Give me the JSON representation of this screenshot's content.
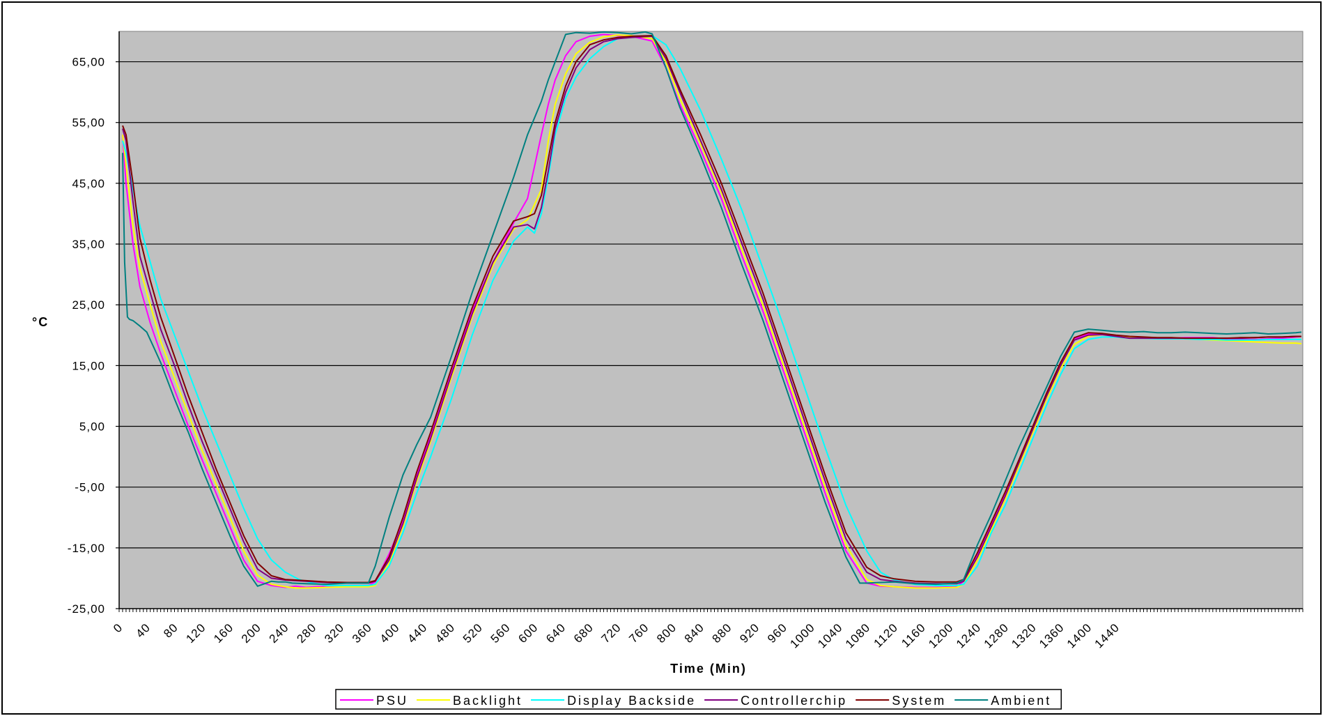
{
  "chart_data": {
    "type": "line",
    "title": "",
    "xlabel": "Time (Min)",
    "ylabel": "°C",
    "xlim": [
      0,
      1710
    ],
    "ylim": [
      -25,
      70
    ],
    "grid": true,
    "plot_background": "#c0c0c0",
    "legend_position": "bottom",
    "y_ticks": [
      -25,
      -15,
      -5,
      5,
      15,
      25,
      35,
      45,
      55,
      65
    ],
    "y_tick_labels": [
      "-25,00",
      "-15,00",
      "-5,00",
      "5,00",
      "15,00",
      "25,00",
      "35,00",
      "45,00",
      "55,00",
      "65,00"
    ],
    "x_ticks": [
      0,
      40,
      80,
      120,
      160,
      200,
      240,
      280,
      320,
      360,
      400,
      440,
      480,
      520,
      560,
      600,
      640,
      680,
      720,
      760,
      800,
      840,
      880,
      920,
      960,
      1000,
      1040,
      1080,
      1120,
      1160,
      1200,
      1240,
      1280,
      1320,
      1360,
      1400,
      1440
    ],
    "x_tick_labels": [
      "0",
      "40",
      "80",
      "120",
      "160",
      "200",
      "240",
      "280",
      "320",
      "360",
      "400",
      "440",
      "480",
      "520",
      "560",
      "600",
      "640",
      "680",
      "720",
      "760",
      "800",
      "840",
      "880",
      "920",
      "960",
      "1000",
      "1040",
      "1080",
      "1120",
      "1160",
      "1200",
      "1240",
      "1280",
      "1320",
      "1360",
      "1400",
      "1440"
    ],
    "series": [
      {
        "name": "PSU",
        "color": "#ff00ff",
        "x": [
          5,
          10,
          20,
          30,
          45,
          60,
          80,
          100,
          120,
          140,
          160,
          180,
          200,
          220,
          240,
          255,
          270,
          300,
          330,
          360,
          370,
          390,
          410,
          430,
          450,
          480,
          510,
          540,
          570,
          590,
          610,
          620,
          630,
          645,
          660,
          680,
          700,
          720,
          740,
          770,
          790,
          810,
          840,
          870,
          900,
          930,
          960,
          990,
          1020,
          1050,
          1080,
          1100,
          1120,
          1150,
          1180,
          1210,
          1220,
          1240,
          1260,
          1280,
          1300,
          1320,
          1340,
          1360,
          1380,
          1400,
          1420,
          1440,
          1460,
          1480,
          1500,
          1520,
          1540,
          1560,
          1580,
          1600,
          1620,
          1640,
          1660,
          1680,
          1700,
          1708
        ],
        "y": [
          53,
          45,
          35,
          28,
          22,
          17,
          11,
          5,
          -0.5,
          -6,
          -11.5,
          -17,
          -20.5,
          -21.2,
          -21.5,
          -21.3,
          -21.5,
          -21.3,
          -21.2,
          -21.2,
          -20.6,
          -16,
          -10.5,
          -3,
          3.5,
          14,
          24,
          32,
          38.5,
          42.5,
          53,
          58,
          62,
          66,
          68.3,
          69.2,
          69.5,
          69.3,
          69.2,
          68.4,
          64,
          58,
          50.5,
          42.5,
          33,
          24,
          14,
          4,
          -6,
          -15.5,
          -20.8,
          -21.3,
          -21.4,
          -21.5,
          -21.5,
          -21.4,
          -20.5,
          -16,
          -11,
          -6,
          -0.5,
          5,
          10.5,
          15.5,
          19.4,
          20.2,
          20.2,
          19.9,
          19.6,
          19.6,
          19.5,
          19.5,
          19.6,
          19.6,
          19.6,
          19.4,
          19.3,
          19.3,
          19.4,
          19.5,
          19.7,
          19.8
        ]
      },
      {
        "name": "Backlight",
        "color": "#ffff00",
        "x": [
          5,
          10,
          20,
          30,
          45,
          60,
          80,
          100,
          120,
          140,
          160,
          180,
          200,
          220,
          240,
          255,
          270,
          300,
          330,
          360,
          370,
          390,
          410,
          430,
          450,
          480,
          510,
          540,
          570,
          590,
          610,
          620,
          630,
          645,
          660,
          680,
          700,
          720,
          740,
          770,
          790,
          810,
          840,
          870,
          900,
          930,
          960,
          990,
          1020,
          1050,
          1080,
          1100,
          1120,
          1150,
          1180,
          1210,
          1220,
          1240,
          1260,
          1280,
          1300,
          1320,
          1340,
          1360,
          1380,
          1400,
          1420,
          1440,
          1460,
          1480,
          1500,
          1520,
          1540,
          1560,
          1580,
          1600,
          1620,
          1640,
          1660,
          1680,
          1700,
          1708
        ],
        "y": [
          53,
          48,
          38,
          31,
          25,
          19,
          13,
          7,
          1,
          -4.5,
          -10,
          -15.5,
          -19.5,
          -21,
          -21.4,
          -21.6,
          -21.6,
          -21.5,
          -21.4,
          -21.4,
          -21.2,
          -17.5,
          -11.5,
          -4,
          2.5,
          13,
          23,
          31.5,
          37.5,
          39,
          44,
          52,
          58,
          63,
          66.3,
          68.2,
          69.1,
          69.4,
          69.3,
          68.8,
          65,
          59,
          51.5,
          43.5,
          34,
          25,
          15,
          5,
          -5,
          -14.5,
          -20.2,
          -21.2,
          -21.4,
          -21.6,
          -21.6,
          -21.5,
          -21,
          -17,
          -12,
          -7,
          -1.5,
          4,
          9.5,
          14.5,
          18.5,
          19.8,
          20.1,
          19.9,
          19.6,
          19.6,
          19.5,
          19.5,
          19.4,
          19.3,
          19.2,
          19.1,
          19,
          18.9,
          18.8,
          18.7,
          18.7,
          18.6
        ]
      },
      {
        "name": "Display Backside",
        "color": "#00ffff",
        "x": [
          5,
          10,
          20,
          30,
          45,
          60,
          80,
          100,
          120,
          140,
          160,
          180,
          200,
          220,
          240,
          260,
          280,
          300,
          330,
          360,
          370,
          390,
          410,
          430,
          450,
          480,
          510,
          540,
          570,
          590,
          600,
          610,
          620,
          630,
          645,
          660,
          680,
          700,
          720,
          740,
          770,
          790,
          810,
          840,
          870,
          900,
          930,
          960,
          990,
          1020,
          1050,
          1080,
          1100,
          1120,
          1150,
          1180,
          1210,
          1220,
          1240,
          1260,
          1280,
          1300,
          1320,
          1340,
          1360,
          1380,
          1400,
          1420,
          1440,
          1460,
          1480,
          1500,
          1520,
          1540,
          1560,
          1580,
          1600,
          1620,
          1640,
          1660,
          1680,
          1700,
          1708
        ],
        "y": [
          52,
          50,
          44,
          38,
          32,
          26,
          20,
          14,
          8,
          2.5,
          -3,
          -8.5,
          -13.5,
          -17,
          -19,
          -20.2,
          -20.8,
          -21.2,
          -21.2,
          -21.2,
          -21,
          -18,
          -12.5,
          -6,
          0,
          9.5,
          20,
          29,
          35.5,
          37.8,
          36.8,
          40,
          46,
          53,
          59,
          62.5,
          65.5,
          67.5,
          68.8,
          69.2,
          69.3,
          67.8,
          64,
          57,
          49,
          40.5,
          31,
          21.5,
          11.5,
          1.5,
          -8,
          -15.5,
          -19,
          -20.3,
          -21,
          -21.2,
          -21.2,
          -21,
          -18,
          -12.5,
          -8,
          -2.5,
          3,
          8.5,
          13.5,
          17.8,
          19.3,
          19.7,
          19.7,
          19.5,
          19.5,
          19.4,
          19.4,
          19.4,
          19.3,
          19.3,
          19.2,
          19.2,
          19.2,
          19.3,
          19.3,
          19.3,
          19.3
        ]
      },
      {
        "name": "Controllerchip",
        "color": "#800080",
        "x": [
          5,
          10,
          20,
          30,
          45,
          60,
          80,
          100,
          120,
          140,
          160,
          180,
          200,
          220,
          240,
          255,
          270,
          300,
          330,
          360,
          370,
          390,
          410,
          430,
          450,
          480,
          510,
          540,
          570,
          590,
          600,
          610,
          620,
          630,
          645,
          660,
          680,
          700,
          720,
          740,
          770,
          790,
          810,
          840,
          870,
          900,
          930,
          960,
          990,
          1020,
          1050,
          1080,
          1100,
          1120,
          1150,
          1180,
          1210,
          1220,
          1240,
          1260,
          1280,
          1300,
          1320,
          1340,
          1360,
          1380,
          1400,
          1420,
          1440,
          1460,
          1480,
          1500,
          1520,
          1540,
          1560,
          1580,
          1600,
          1620,
          1640,
          1660,
          1680,
          1700,
          1708
        ],
        "y": [
          54,
          52,
          42,
          33,
          27,
          21,
          15,
          8.5,
          2.5,
          -3,
          -8.5,
          -14,
          -18.5,
          -20,
          -20.3,
          -20.4,
          -20.5,
          -20.7,
          -20.8,
          -20.8,
          -20.5,
          -17,
          -11,
          -3.5,
          3,
          13.5,
          23.5,
          32,
          37.8,
          38.2,
          37.5,
          41,
          47,
          54,
          60,
          64,
          67,
          68.3,
          68.8,
          69,
          69.2,
          65.5,
          60,
          52,
          44,
          35,
          26,
          16,
          6,
          -4,
          -13.5,
          -19,
          -20.2,
          -20.5,
          -20.8,
          -20.9,
          -20.9,
          -20.5,
          -16.5,
          -11.5,
          -6.5,
          -1,
          4.5,
          10,
          15,
          19.2,
          20,
          20.1,
          19.8,
          19.5,
          19.5,
          19.5,
          19.5,
          19.5,
          19.5,
          19.5,
          19.5,
          19.5,
          19.6,
          19.7,
          19.7,
          19.8,
          19.8
        ]
      },
      {
        "name": "System",
        "color": "#800000",
        "x": [
          5,
          10,
          20,
          30,
          45,
          60,
          80,
          100,
          120,
          140,
          160,
          180,
          200,
          220,
          240,
          255,
          270,
          300,
          330,
          360,
          370,
          390,
          410,
          430,
          450,
          480,
          510,
          540,
          570,
          590,
          600,
          610,
          620,
          630,
          645,
          660,
          680,
          700,
          720,
          740,
          770,
          790,
          810,
          840,
          870,
          900,
          930,
          960,
          990,
          1020,
          1050,
          1080,
          1100,
          1120,
          1150,
          1180,
          1210,
          1220,
          1240,
          1260,
          1280,
          1300,
          1320,
          1340,
          1360,
          1380,
          1400,
          1420,
          1440,
          1460,
          1480,
          1500,
          1520,
          1540,
          1560,
          1580,
          1600,
          1620,
          1640,
          1660,
          1680,
          1700,
          1708
        ],
        "y": [
          54.5,
          53,
          45,
          36,
          29,
          23,
          16.5,
          10,
          4,
          -2,
          -7.5,
          -13,
          -17.5,
          -19.6,
          -20.2,
          -20.3,
          -20.4,
          -20.6,
          -20.7,
          -20.7,
          -20.4,
          -16.5,
          -10,
          -2.5,
          4,
          14.5,
          24.5,
          33,
          38.8,
          39.5,
          40,
          43,
          49,
          55,
          61,
          65,
          67.8,
          68.6,
          69,
          69.2,
          69.3,
          66,
          60.5,
          53,
          45,
          36,
          27,
          17,
          7,
          -3,
          -12.5,
          -18.2,
          -19.6,
          -20.1,
          -20.5,
          -20.6,
          -20.6,
          -20.2,
          -15.8,
          -10.8,
          -5.8,
          -0.5,
          5,
          10.5,
          15.5,
          19.6,
          20.4,
          20.3,
          20,
          19.8,
          19.7,
          19.6,
          19.6,
          19.5,
          19.5,
          19.5,
          19.5,
          19.6,
          19.6,
          19.7,
          19.7,
          19.8,
          19.8
        ]
      },
      {
        "name": "Ambient",
        "color": "#008080",
        "x": [
          5,
          8,
          12,
          15,
          20,
          30,
          40,
          50,
          60,
          80,
          100,
          120,
          140,
          160,
          180,
          200,
          220,
          230,
          240,
          250,
          270,
          300,
          330,
          360,
          370,
          390,
          410,
          430,
          450,
          480,
          510,
          540,
          570,
          590,
          610,
          620,
          630,
          645,
          660,
          680,
          700,
          720,
          740,
          760,
          770,
          790,
          810,
          840,
          870,
          900,
          930,
          960,
          990,
          1020,
          1050,
          1070,
          1080,
          1100,
          1120,
          1150,
          1180,
          1210,
          1220,
          1240,
          1260,
          1280,
          1300,
          1320,
          1340,
          1360,
          1380,
          1400,
          1420,
          1440,
          1460,
          1480,
          1500,
          1520,
          1540,
          1560,
          1580,
          1600,
          1620,
          1640,
          1660,
          1680,
          1700,
          1708
        ],
        "y": [
          50,
          32,
          23,
          22.6,
          22.4,
          21.5,
          20.5,
          18,
          15.5,
          9.5,
          4,
          -2,
          -7.5,
          -13,
          -18,
          -21.3,
          -20.5,
          -20.6,
          -20.6,
          -20.8,
          -20.9,
          -21,
          -20.8,
          -20.8,
          -18,
          -10,
          -3,
          2,
          6.5,
          16.5,
          27,
          36.5,
          46,
          53,
          58.5,
          62,
          65,
          69.5,
          69.8,
          69.7,
          69.9,
          69.8,
          69.6,
          69.9,
          69.6,
          64,
          57.5,
          49.5,
          41,
          31.5,
          22.5,
          12.5,
          2.5,
          -7.5,
          -16.5,
          -20.8,
          -20.8,
          -20.7,
          -20.6,
          -20.9,
          -21,
          -20.8,
          -20.2,
          -14.5,
          -9.5,
          -4,
          1.5,
          6.5,
          11.5,
          16.5,
          20.5,
          21,
          20.8,
          20.6,
          20.5,
          20.6,
          20.4,
          20.4,
          20.5,
          20.4,
          20.3,
          20.2,
          20.3,
          20.4,
          20.2,
          20.3,
          20.4,
          20.5
        ]
      }
    ]
  }
}
